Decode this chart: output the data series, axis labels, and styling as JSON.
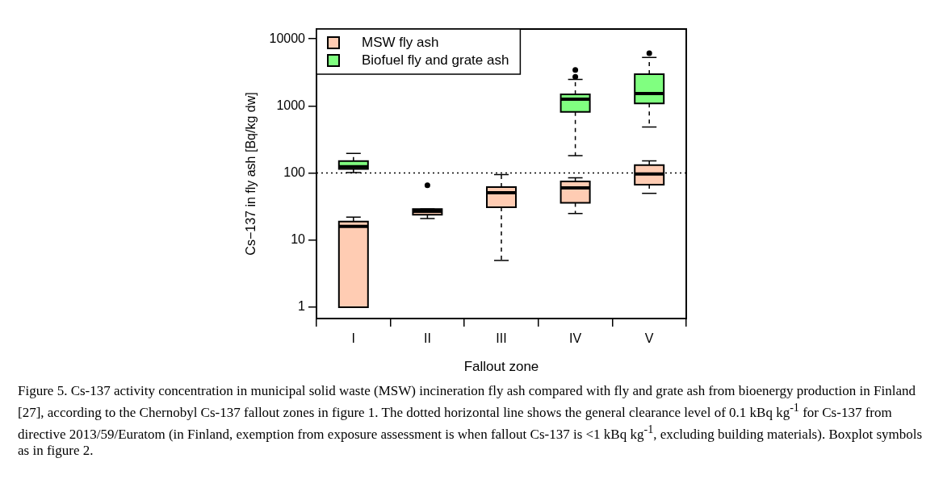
{
  "chart_data": {
    "type": "box",
    "xlabel": "Fallout zone",
    "ylabel": "Cs−137 in fly ash [Bq/kg dw]",
    "categories": [
      "I",
      "II",
      "III",
      "IV",
      "V"
    ],
    "log": true,
    "ylim": [
      0.68,
      14000
    ],
    "yticks": [
      1,
      10,
      100,
      1000,
      10000
    ],
    "grid": false,
    "legend": "top left",
    "series": [
      {
        "name": "MSW fly ash",
        "color": "#ffccb3",
        "boxes": [
          {
            "low": 1,
            "q1": 1,
            "median": 16,
            "q3": 19,
            "high": 22
          },
          {
            "low": 21,
            "q1": 24,
            "median": 27,
            "q3": 29,
            "high": 29,
            "outliers": [
              66
            ]
          },
          {
            "low": 5,
            "q1": 31,
            "median": 51,
            "q3": 62,
            "high": 95
          },
          {
            "low": 25,
            "q1": 36,
            "median": 60,
            "q3": 75,
            "high": 85
          },
          {
            "low": 50,
            "q1": 67,
            "median": 97,
            "q3": 131,
            "high": 152
          }
        ]
      },
      {
        "name": "Biofuel fly and grate ash",
        "color": "#80ff80",
        "boxes": [
          {
            "low": 102,
            "q1": 115,
            "median": 124,
            "q3": 151,
            "high": 196
          },
          null,
          null,
          {
            "low": 182,
            "q1": 816,
            "median": 1260,
            "q3": 1489,
            "high": 2477,
            "outliers": [
              2715,
              3450
            ]
          },
          {
            "low": 486,
            "q1": 1087,
            "median": 1530,
            "q3": 2980,
            "high": 5280,
            "outliers": [
              6120
            ]
          }
        ]
      }
    ],
    "ref_lines": [
      {
        "axis": "y",
        "value": 100,
        "line_style": "dotted",
        "color": "#000000"
      }
    ],
    "annotations": [
      "Figure 5. Cs-137 activity concentration in municipal solid waste (MSW) incineration fly ash compared with fly and grate ash from bioenergy production in Finland [27], according to the Chernobyl Cs-137 fallout zones in figure 1. The dotted horizontal line shows the general clearance level of 0.1 kBq kg$^{-1}$ for Cs-137 from directive 2013/59/Euratom (in Finland, exemption from exposure assessment is when fallout Cs-137 is <1 kBq kg$^{-1}$, excluding building materials). Boxplot symbols as in figure 2."
    ]
  }
}
